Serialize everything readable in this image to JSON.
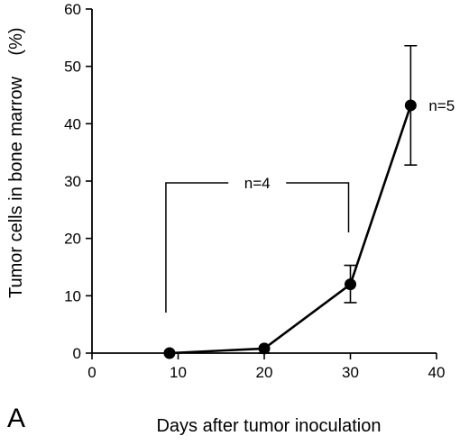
{
  "chart_data": {
    "type": "line",
    "panel_label": "A",
    "xlabel": "Days after tumor inoculation",
    "ylabel": "Tumor cells in bone marrow (%)",
    "ylabel_text": "Tumor cells in bone marrow",
    "ylabel_unit": "(%)",
    "xlim": [
      0,
      40
    ],
    "ylim": [
      0,
      60
    ],
    "x_ticks": [
      0,
      10,
      20,
      30,
      40
    ],
    "y_ticks": [
      0,
      10,
      20,
      30,
      40,
      50,
      60
    ],
    "x_tick_labels": [
      "0",
      "10",
      "20",
      "30",
      "40"
    ],
    "y_tick_labels": [
      "0",
      "10",
      "20",
      "30",
      "40",
      "50",
      "60"
    ],
    "grid": false,
    "series": [
      {
        "x": [
          9,
          20,
          30,
          37
        ],
        "values": [
          0,
          0.8,
          12,
          43.2
        ],
        "error_upper": [
          0,
          0,
          15.3,
          53.6
        ],
        "error_lower": [
          0,
          0,
          8.8,
          32.8
        ]
      }
    ],
    "annotations": [
      {
        "text": "n=4",
        "type": "bracket",
        "x_from": 9,
        "x_to": 30
      },
      {
        "text": "n=5",
        "type": "label",
        "x": 37,
        "y": 43.2
      }
    ]
  }
}
